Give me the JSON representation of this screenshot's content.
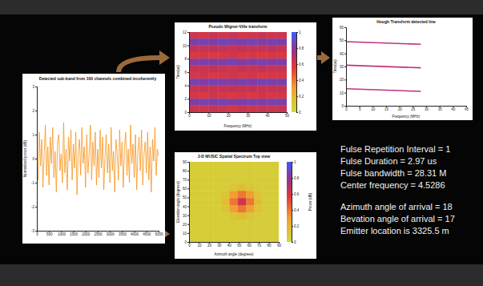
{
  "chart_data": [
    {
      "type": "line",
      "title": "Detected sub-band from 160 channels combined incoherently",
      "y_label": "Normalized power (dB)",
      "color": "#f7941d",
      "xlim": [
        0,
        5000
      ],
      "xticks": [
        0,
        500,
        1000,
        1500,
        2000,
        2500,
        3000,
        3500,
        4000,
        4500,
        5000
      ],
      "ylim": [
        -3,
        3
      ],
      "yticks": [
        -3,
        -2,
        -1,
        0,
        1,
        2,
        3
      ],
      "x": [
        0,
        50,
        100,
        150,
        200,
        250,
        300,
        350,
        400,
        450,
        500,
        550,
        600,
        650,
        700,
        750,
        800,
        850,
        900,
        950,
        1000,
        1050,
        1100,
        1150,
        1200,
        1250,
        1300,
        1350,
        1400,
        1450,
        1500,
        1550,
        1600,
        1650,
        1700,
        1750,
        1800,
        1850,
        1900,
        1950,
        2000,
        2050,
        2100,
        2150,
        2200,
        2250,
        2300,
        2350,
        2400,
        2450,
        2500,
        2550,
        2600,
        2650,
        2700,
        2750,
        2800,
        2850,
        2900,
        2950,
        3000,
        3050,
        3100,
        3150,
        3200,
        3250,
        3300,
        3350,
        3400,
        3450,
        3500,
        3550,
        3600,
        3650,
        3700,
        3750,
        3800,
        3850,
        3900,
        3950,
        4000,
        4050,
        4100,
        4150,
        4200,
        4250,
        4300,
        4350,
        4400,
        4450,
        4500,
        4550,
        4600,
        4650,
        4700,
        4750,
        4800,
        4850,
        4900,
        4950,
        5000
      ],
      "values": [
        0.4,
        -0.9,
        1.1,
        -0.3,
        0.8,
        -1.2,
        0.2,
        1.4,
        -0.7,
        0.5,
        -1.1,
        0.9,
        -0.2,
        1.3,
        -0.8,
        0.3,
        -1.4,
        0.7,
        1.0,
        -0.5,
        0.2,
        -1.0,
        1.5,
        -0.6,
        0.4,
        -1.3,
        0.9,
        -0.1,
        1.2,
        -0.9,
        0.6,
        -0.4,
        1.1,
        -1.5,
        0.3,
        0.8,
        -0.7,
        1.3,
        -0.2,
        0.5,
        -1.2,
        1.0,
        -0.6,
        0.2,
        1.4,
        -0.9,
        0.7,
        -0.3,
        1.1,
        -1.1,
        0.4,
        -0.8,
        1.2,
        -0.4,
        0.9,
        -1.3,
        0.1,
        1.0,
        -0.6,
        0.6,
        -1.0,
        1.3,
        -0.5,
        0.3,
        -1.4,
        0.8,
        0.2,
        -0.9,
        1.2,
        -0.3,
        0.7,
        -1.2,
        0.5,
        1.1,
        -0.7,
        0.4,
        -1.0,
        1.4,
        -0.2,
        0.6,
        -0.8,
        1.0,
        -1.3,
        0.3,
        0.9,
        -0.5,
        1.2,
        -1.1,
        0.2,
        0.7,
        -0.6,
        1.1,
        -0.9,
        0.5,
        -1.4,
        0.8,
        -0.1,
        1.3,
        -0.7,
        0.4,
        0.1
      ]
    },
    {
      "type": "heatmap",
      "title": "Pseudo Wigner-Ville transform",
      "x_label": "Frequency (MHz)",
      "y_label": "Time(us)",
      "xlim": [
        0,
        50
      ],
      "xticks": [
        0,
        10,
        20,
        30,
        40,
        50
      ],
      "ylim": [
        0,
        12
      ],
      "yticks": [
        0,
        2,
        4,
        6,
        8,
        10,
        12
      ],
      "colorbar_range": [
        0,
        1
      ],
      "colorbar_ticks": [
        0,
        0.2,
        0.4,
        0.6,
        0.8,
        1
      ],
      "cells": [
        [
          0.62,
          0.6,
          0.63,
          0.61,
          0.64,
          0.6,
          0.62,
          0.63,
          0.61,
          0.62
        ],
        [
          0.84,
          0.86,
          0.83,
          0.87,
          0.85,
          0.84,
          0.86,
          0.83,
          0.85,
          0.84
        ],
        [
          0.66,
          0.64,
          0.67,
          0.65,
          0.63,
          0.66,
          0.64,
          0.65,
          0.67,
          0.64
        ],
        [
          0.58,
          0.6,
          0.57,
          0.59,
          0.61,
          0.58,
          0.6,
          0.57,
          0.59,
          0.58
        ],
        [
          0.82,
          0.85,
          0.83,
          0.84,
          0.86,
          0.82,
          0.84,
          0.85,
          0.83,
          0.84
        ],
        [
          0.65,
          0.63,
          0.66,
          0.64,
          0.62,
          0.65,
          0.63,
          0.66,
          0.64,
          0.65
        ],
        [
          0.59,
          0.61,
          0.58,
          0.6,
          0.62,
          0.59,
          0.61,
          0.58,
          0.6,
          0.59
        ],
        [
          0.85,
          0.83,
          0.86,
          0.84,
          0.82,
          0.85,
          0.83,
          0.86,
          0.84,
          0.85
        ],
        [
          0.64,
          0.66,
          0.63,
          0.65,
          0.67,
          0.64,
          0.66,
          0.63,
          0.65,
          0.64
        ],
        [
          0.6,
          0.58,
          0.61,
          0.59,
          0.57,
          0.6,
          0.58,
          0.61,
          0.59,
          0.6
        ],
        [
          0.83,
          0.85,
          0.84,
          0.86,
          0.83,
          0.84,
          0.85,
          0.83,
          0.86,
          0.84
        ],
        [
          0.63,
          0.61,
          0.64,
          0.62,
          0.6,
          0.63,
          0.61,
          0.64,
          0.62,
          0.63
        ]
      ]
    },
    {
      "type": "line",
      "title": "Hough Transform detected line",
      "x_label": "Frequency (MHz)",
      "y_label": "Time(us)",
      "xlim": [
        0,
        45
      ],
      "xticks": [
        0,
        5,
        10,
        15,
        20,
        25,
        30,
        35,
        40,
        45
      ],
      "ylim": [
        0,
        60
      ],
      "yticks": [
        0,
        10,
        20,
        30,
        40,
        50,
        60
      ],
      "x": [
        0,
        28
      ],
      "series": [
        {
          "color": "#c2307e",
          "values": [
            49,
            47
          ]
        },
        {
          "color": "#c2307e",
          "values": [
            31,
            29
          ]
        },
        {
          "color": "#c2307e",
          "values": [
            13,
            11
          ]
        }
      ]
    },
    {
      "type": "heatmap",
      "title": "2-D MUSIC Spatial Spectrum Top view",
      "x_label": "Azimuth angle (degrees)",
      "y_label": "Elevation angle (degrees)",
      "colorbar_label": "Power (dB)",
      "xlim": [
        0,
        90
      ],
      "xticks": [
        0,
        10,
        20,
        30,
        40,
        50,
        60,
        70,
        80,
        90
      ],
      "ylim": [
        0,
        90
      ],
      "yticks": [
        0,
        10,
        20,
        30,
        40,
        50,
        60,
        70,
        80,
        90
      ],
      "colorbar_range": [
        0,
        1
      ],
      "colorbar_ticks": [
        0,
        0.2,
        0.4,
        0.6,
        0.8,
        1
      ],
      "cells": [
        [
          0.08,
          0.08,
          0.08,
          0.08,
          0.08,
          0.08,
          0.08,
          0.08,
          0.08,
          0.08,
          0.08
        ],
        [
          0.08,
          0.08,
          0.08,
          0.08,
          0.08,
          0.08,
          0.08,
          0.08,
          0.08,
          0.08,
          0.08
        ],
        [
          0.08,
          0.08,
          0.08,
          0.08,
          0.08,
          0.08,
          0.08,
          0.08,
          0.08,
          0.08,
          0.08
        ],
        [
          0.08,
          0.08,
          0.08,
          0.08,
          0.08,
          0.12,
          0.16,
          0.12,
          0.08,
          0.08,
          0.08
        ],
        [
          0.08,
          0.08,
          0.08,
          0.08,
          0.12,
          0.3,
          0.4,
          0.3,
          0.12,
          0.08,
          0.08
        ],
        [
          0.08,
          0.08,
          0.08,
          0.08,
          0.16,
          0.4,
          0.62,
          0.4,
          0.16,
          0.08,
          0.08
        ],
        [
          0.08,
          0.08,
          0.08,
          0.08,
          0.12,
          0.3,
          0.4,
          0.3,
          0.12,
          0.08,
          0.08
        ],
        [
          0.08,
          0.08,
          0.08,
          0.08,
          0.08,
          0.12,
          0.16,
          0.12,
          0.08,
          0.08,
          0.08
        ],
        [
          0.08,
          0.08,
          0.08,
          0.08,
          0.08,
          0.08,
          0.08,
          0.08,
          0.08,
          0.08,
          0.08
        ],
        [
          0.08,
          0.08,
          0.08,
          0.08,
          0.08,
          0.08,
          0.08,
          0.08,
          0.08,
          0.08,
          0.08
        ],
        [
          0.08,
          0.08,
          0.08,
          0.08,
          0.08,
          0.08,
          0.08,
          0.08,
          0.08,
          0.08,
          0.08
        ]
      ]
    }
  ],
  "results": [
    "Fulse Repetition Interval = 1",
    "Fulse Duration = 2.97 us",
    "Fulse bandwidth = 28.31 M",
    "Center frequency = 4.5286",
    "Azimuth angle of arrival = 18",
    "Bevation angle of arrival = 17",
    "Emitter location is 3325.5 m"
  ]
}
